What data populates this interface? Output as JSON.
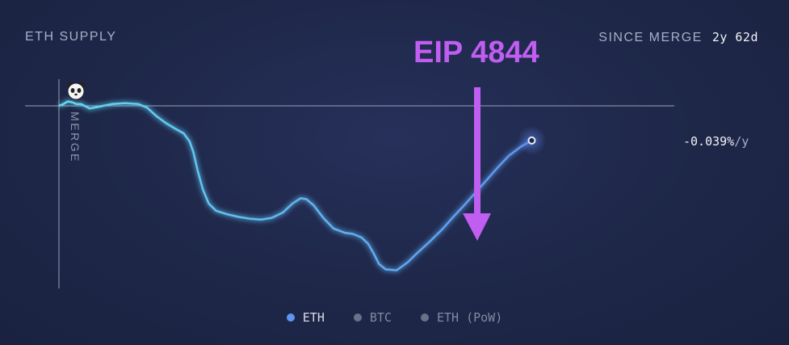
{
  "header": {
    "title": "ETH SUPPLY",
    "since_label": "SINCE MERGE",
    "since_value": "2y 62d"
  },
  "annotation": {
    "text": "EIP 4844",
    "color": "#c15ef2"
  },
  "current_rate": {
    "value": "-0.039%",
    "unit": "/y"
  },
  "merge_marker": {
    "label": "MERGE",
    "icon": "panda-icon"
  },
  "legend": [
    {
      "label": "ETH",
      "color": "#5f95f0",
      "active": true
    },
    {
      "label": "BTC",
      "color": "#6a7189",
      "active": false
    },
    {
      "label": "ETH (PoW)",
      "color": "#6a7189",
      "active": false
    }
  ],
  "chart_data": {
    "type": "line",
    "title": "ETH SUPPLY",
    "xlabel": "",
    "ylabel": "",
    "x_unit": "days since merge",
    "xlim": [
      0,
      792
    ],
    "grid": false,
    "series": [
      {
        "name": "ETH",
        "color_start": "#63d9f2",
        "color_end": "#5c86ef",
        "points": [
          [
            0,
            0.0
          ],
          [
            6,
            0.002
          ],
          [
            12,
            0.005
          ],
          [
            18,
            0.004
          ],
          [
            24,
            0.002
          ],
          [
            30,
            0.002
          ],
          [
            42,
            -0.003
          ],
          [
            54,
            -0.001
          ],
          [
            72,
            0.002
          ],
          [
            90,
            0.003
          ],
          [
            108,
            0.002
          ],
          [
            120,
            -0.002
          ],
          [
            132,
            -0.011
          ],
          [
            145,
            -0.019
          ],
          [
            157,
            -0.025
          ],
          [
            170,
            -0.031
          ],
          [
            178,
            -0.04
          ],
          [
            183,
            -0.052
          ],
          [
            189,
            -0.073
          ],
          [
            196,
            -0.094
          ],
          [
            204,
            -0.11
          ],
          [
            214,
            -0.118
          ],
          [
            229,
            -0.122
          ],
          [
            245,
            -0.125
          ],
          [
            260,
            -0.127
          ],
          [
            275,
            -0.128
          ],
          [
            290,
            -0.126
          ],
          [
            305,
            -0.12
          ],
          [
            318,
            -0.11
          ],
          [
            329,
            -0.104
          ],
          [
            337,
            -0.105
          ],
          [
            347,
            -0.112
          ],
          [
            360,
            -0.126
          ],
          [
            374,
            -0.138
          ],
          [
            390,
            -0.143
          ],
          [
            400,
            -0.144
          ],
          [
            412,
            -0.148
          ],
          [
            421,
            -0.155
          ],
          [
            428,
            -0.165
          ],
          [
            436,
            -0.178
          ],
          [
            445,
            -0.184
          ],
          [
            460,
            -0.185
          ],
          [
            475,
            -0.176
          ],
          [
            490,
            -0.164
          ],
          [
            506,
            -0.152
          ],
          [
            522,
            -0.139
          ],
          [
            537,
            -0.125
          ],
          [
            553,
            -0.111
          ],
          [
            568,
            -0.097
          ],
          [
            582,
            -0.084
          ],
          [
            598,
            -0.069
          ],
          [
            613,
            -0.056
          ],
          [
            629,
            -0.046
          ],
          [
            644,
            -0.039
          ]
        ]
      }
    ]
  }
}
